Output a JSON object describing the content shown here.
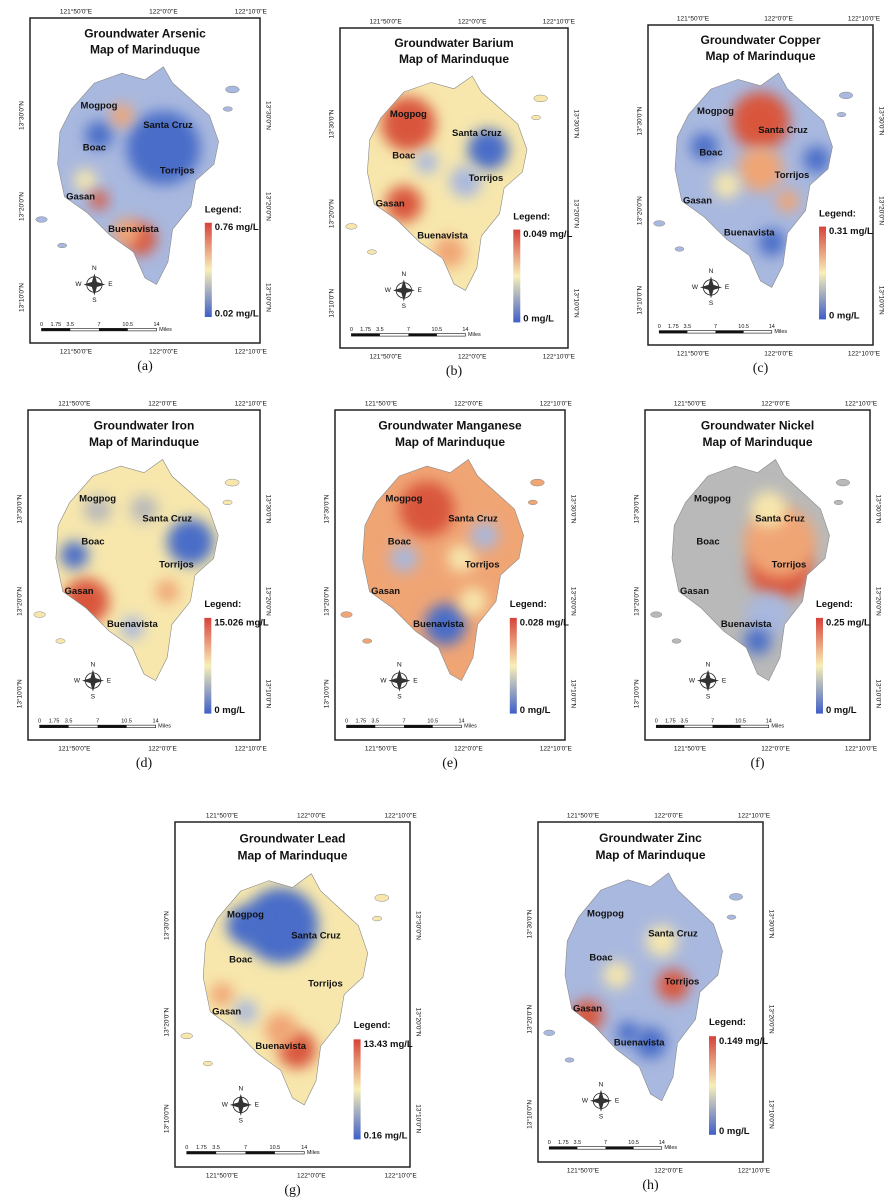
{
  "figure": {
    "panels": [
      {
        "title": "Groundwater Arsenic",
        "subtitle": "Map of Marinduque",
        "legend_max": "0.76 mg/L",
        "legend_min": "0.02 mg/L",
        "caption": "(a)"
      },
      {
        "title": "Groundwater Barium",
        "subtitle": "Map of Marinduque",
        "legend_max": "0.049 mg/L",
        "legend_min": "0 mg/L",
        "caption": "(b)"
      },
      {
        "title": "Groundwater Copper",
        "subtitle": "Map of Marinduque",
        "legend_max": "0.31 mg/L",
        "legend_min": "0 mg/L",
        "caption": "(c)"
      },
      {
        "title": "Groundwater Iron",
        "subtitle": "Map of Marinduque",
        "legend_max": "15.026 mg/L",
        "legend_min": "0 mg/L",
        "caption": "(d)"
      },
      {
        "title": "Groundwater Manganese",
        "subtitle": "Map of Marinduque",
        "legend_max": "0.028 mg/L",
        "legend_min": "0 mg/L",
        "caption": "(e)"
      },
      {
        "title": "Groundwater Nickel",
        "subtitle": "Map of Marinduque",
        "legend_max": "0.25 mg/L",
        "legend_min": "0 mg/L",
        "caption": "(f)"
      },
      {
        "title": "Groundwater Lead",
        "subtitle": "Map of Marinduque",
        "legend_max": "13.43 mg/L",
        "legend_min": "0.16 mg/L",
        "caption": "(g)"
      },
      {
        "title": "Groundwater Zinc",
        "subtitle": "Map of Marinduque",
        "legend_max": "0.149 mg/L",
        "legend_min": "0 mg/L",
        "caption": "(h)"
      }
    ],
    "legend_title": "Legend:",
    "towns": [
      "Mogpog",
      "Santa Cruz",
      "Boac",
      "Torrijos",
      "Gasan",
      "Buenavista"
    ],
    "longitudes": [
      "121°50'0\"E",
      "122°0'0\"E",
      "122°10'0\"E"
    ],
    "latitudes": [
      "13°30'0\"N",
      "13°20'0\"N",
      "13°10'0\"N"
    ],
    "compass": [
      "N",
      "E",
      "S",
      "W"
    ],
    "scale": [
      "0",
      "1.75",
      "3.5",
      "7",
      "10.5",
      "14",
      "Miles"
    ]
  }
}
